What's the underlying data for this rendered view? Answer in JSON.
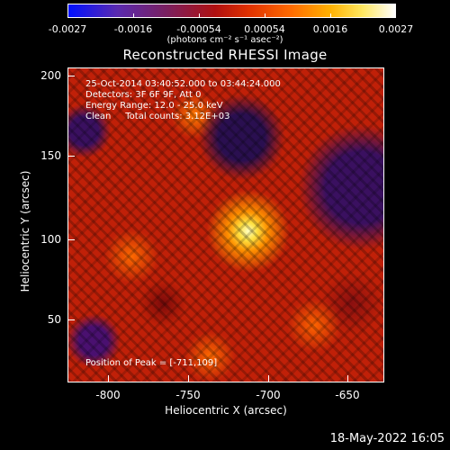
{
  "colorbar": {
    "ticks": [
      "-0.0027",
      "-0.0016",
      "-0.00054",
      "0.00054",
      "0.0016",
      "0.0027"
    ],
    "units": "(photons cm⁻² s⁻¹ asec⁻²)"
  },
  "title": "Reconstructed RHESSI Image",
  "info": {
    "time_range": "25-Oct-2014 03:40:52.000 to 03:44:24.000",
    "detectors": "Detectors: 3F 6F 9F, Att 0",
    "energy": "Energy Range: 12.0 - 25.0 keV",
    "clean": "Clean     Total counts: 3.12E+03",
    "peak": "Position of Peak = [-711,109]"
  },
  "axes": {
    "xlabel": "Heliocentric X (arcsec)",
    "ylabel": "Heliocentric Y (arcsec)",
    "xticks": [
      "-800",
      "-750",
      "-700",
      "-650"
    ],
    "yticks": [
      "200",
      "150",
      "100",
      "50"
    ]
  },
  "footer": {
    "date": "18-May-2022 16:05"
  }
}
